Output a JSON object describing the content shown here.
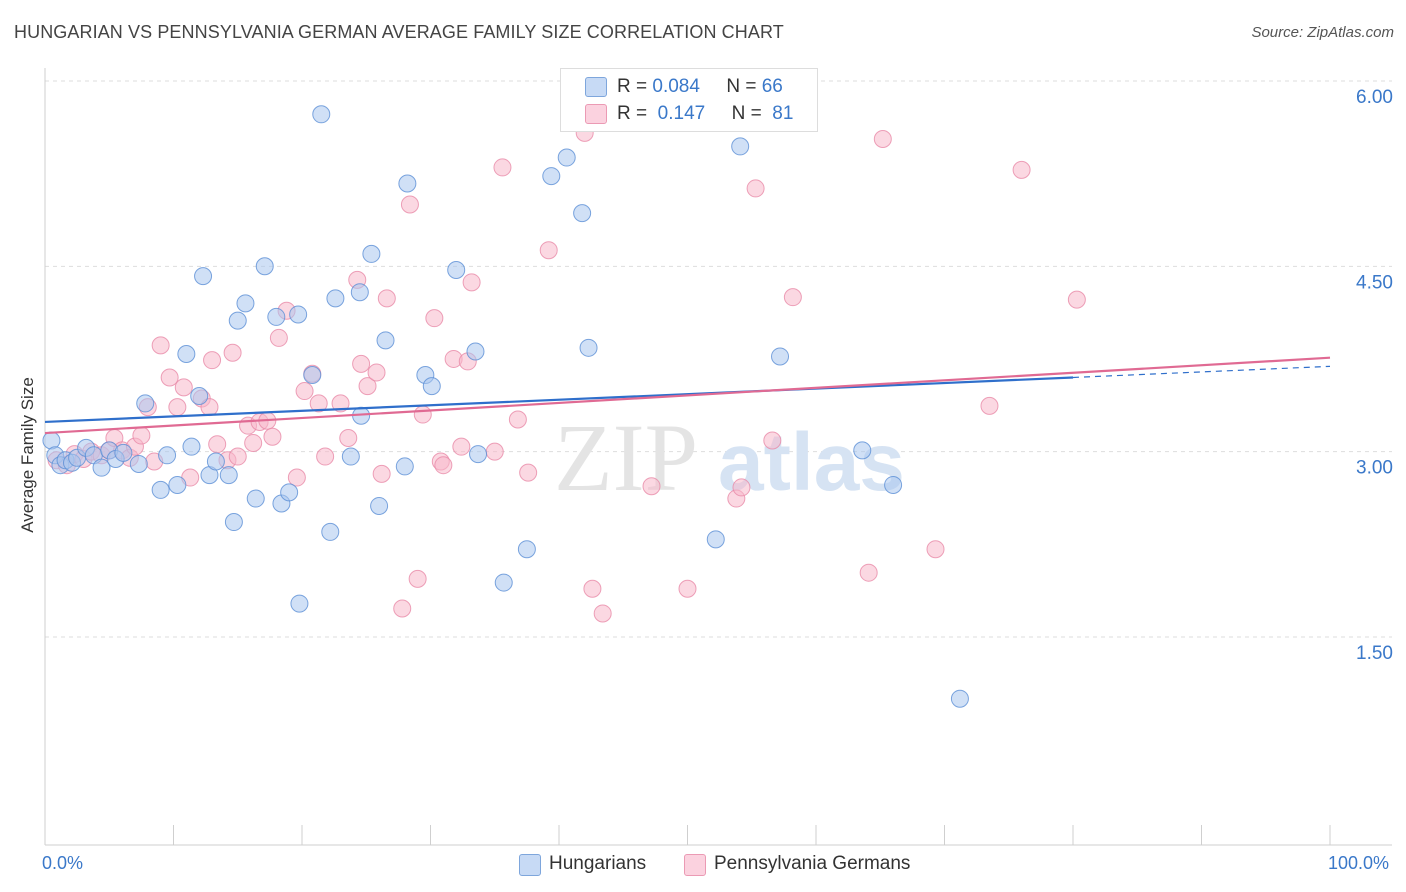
{
  "title": "HUNGARIAN VS PENNSYLVANIA GERMAN AVERAGE FAMILY SIZE CORRELATION CHART",
  "source": "Source: ZipAtlas.com",
  "watermark": {
    "zip": "ZIP",
    "atlas": "atlas"
  },
  "legend": {
    "rows": [
      {
        "r_label": "R =",
        "r_value": "0.084",
        "n_label": "N =",
        "n_value": "66",
        "color": "#a9c6ef"
      },
      {
        "r_label": "R =",
        "r_value": "0.147",
        "n_label": "N =",
        "n_value": "81",
        "color": "#f7b8cb"
      }
    ]
  },
  "bottom_legend": [
    {
      "label": "Hungarians",
      "color": "#a9c6ef"
    },
    {
      "label": "Pennsylvania Germans",
      "color": "#f7b8cb"
    }
  ],
  "chart_data": {
    "type": "scatter",
    "title": "HUNGARIAN VS PENNSYLVANIA GERMAN AVERAGE FAMILY SIZE CORRELATION CHART",
    "xlabel": "",
    "ylabel": "Average Family Size",
    "xlim": [
      0,
      100
    ],
    "ylim": [
      0.2,
      6.3
    ],
    "x_tick_labels": [
      "0.0%",
      "100.0%"
    ],
    "y_ticks": [
      1.5,
      3.0,
      4.5,
      6.0
    ],
    "y_tick_labels": [
      "1.50",
      "3.00",
      "4.50",
      "6.00"
    ],
    "grid": "horizontal dashed",
    "legend_position": "top-center",
    "series": [
      {
        "name": "Hungarians",
        "color": "#5b8fd6",
        "fill": "#a9c6ef",
        "trend": {
          "x": [
            0,
            80
          ],
          "y": [
            3.37,
            3.73
          ]
        },
        "trend_dashed": {
          "x": [
            80,
            100
          ],
          "y": [
            3.73,
            3.82
          ]
        },
        "points": [
          [
            0.5,
            3.22
          ],
          [
            0.8,
            3.1
          ],
          [
            1.2,
            3.02
          ],
          [
            1.6,
            3.06
          ],
          [
            2.1,
            3.04
          ],
          [
            2.5,
            3.08
          ],
          [
            3.2,
            3.16
          ],
          [
            3.8,
            3.1
          ],
          [
            4.4,
            3.0
          ],
          [
            5.0,
            3.14
          ],
          [
            5.5,
            3.07
          ],
          [
            6.1,
            3.12
          ],
          [
            7.3,
            3.03
          ],
          [
            7.8,
            3.52
          ],
          [
            9.0,
            2.82
          ],
          [
            9.5,
            3.1
          ],
          [
            10.3,
            2.86
          ],
          [
            11.0,
            3.92
          ],
          [
            11.4,
            3.17
          ],
          [
            12.0,
            3.58
          ],
          [
            12.3,
            4.55
          ],
          [
            12.8,
            2.94
          ],
          [
            13.3,
            3.05
          ],
          [
            14.3,
            2.94
          ],
          [
            14.7,
            2.56
          ],
          [
            15.0,
            4.19
          ],
          [
            15.6,
            4.33
          ],
          [
            16.4,
            2.75
          ],
          [
            17.1,
            4.63
          ],
          [
            18.0,
            4.22
          ],
          [
            18.4,
            2.71
          ],
          [
            19.0,
            2.8
          ],
          [
            19.7,
            4.24
          ],
          [
            19.8,
            1.9
          ],
          [
            20.8,
            3.75
          ],
          [
            21.5,
            5.86
          ],
          [
            22.2,
            2.48
          ],
          [
            22.6,
            4.37
          ],
          [
            23.8,
            3.09
          ],
          [
            24.6,
            3.42
          ],
          [
            24.5,
            4.42
          ],
          [
            25.4,
            4.73
          ],
          [
            26.0,
            2.69
          ],
          [
            26.5,
            4.03
          ],
          [
            28.0,
            3.01
          ],
          [
            28.2,
            5.3
          ],
          [
            29.6,
            3.75
          ],
          [
            30.1,
            3.66
          ],
          [
            32.0,
            4.6
          ],
          [
            33.5,
            3.94
          ],
          [
            33.7,
            3.11
          ],
          [
            35.7,
            2.07
          ],
          [
            37.5,
            2.34
          ],
          [
            39.4,
            5.36
          ],
          [
            40.6,
            5.51
          ],
          [
            41.8,
            5.06
          ],
          [
            42.3,
            3.97
          ],
          [
            52.2,
            2.42
          ],
          [
            54.1,
            5.6
          ],
          [
            57.2,
            3.9
          ],
          [
            63.6,
            3.14
          ],
          [
            66.0,
            2.86
          ],
          [
            71.2,
            1.13
          ]
        ]
      },
      {
        "name": "Pennsylvania Germans",
        "color": "#e88aa8",
        "fill": "#f7b8cb",
        "trend": {
          "x": [
            0,
            100
          ],
          "y": [
            3.28,
            3.89
          ]
        },
        "points": [
          [
            0.9,
            3.06
          ],
          [
            1.7,
            3.02
          ],
          [
            2.3,
            3.11
          ],
          [
            3.0,
            3.07
          ],
          [
            3.6,
            3.13
          ],
          [
            4.4,
            3.1
          ],
          [
            5.0,
            3.14
          ],
          [
            5.4,
            3.24
          ],
          [
            6.0,
            3.14
          ],
          [
            6.6,
            3.08
          ],
          [
            7.0,
            3.17
          ],
          [
            7.5,
            3.26
          ],
          [
            8.0,
            3.49
          ],
          [
            8.5,
            3.05
          ],
          [
            9.0,
            3.99
          ],
          [
            9.7,
            3.73
          ],
          [
            10.3,
            3.49
          ],
          [
            10.8,
            3.65
          ],
          [
            11.3,
            2.92
          ],
          [
            12.2,
            3.56
          ],
          [
            12.8,
            3.49
          ],
          [
            13.4,
            3.19
          ],
          [
            13.0,
            3.87
          ],
          [
            14.2,
            3.06
          ],
          [
            14.6,
            3.93
          ],
          [
            15.0,
            3.09
          ],
          [
            15.8,
            3.34
          ],
          [
            16.2,
            3.2
          ],
          [
            16.7,
            3.37
          ],
          [
            17.3,
            3.38
          ],
          [
            17.7,
            3.25
          ],
          [
            18.2,
            4.05
          ],
          [
            18.8,
            4.27
          ],
          [
            19.6,
            2.92
          ],
          [
            20.2,
            3.62
          ],
          [
            20.8,
            3.76
          ],
          [
            21.3,
            3.52
          ],
          [
            21.8,
            3.09
          ],
          [
            23.0,
            3.52
          ],
          [
            23.6,
            3.24
          ],
          [
            24.3,
            4.52
          ],
          [
            24.6,
            3.84
          ],
          [
            25.1,
            3.66
          ],
          [
            25.8,
            3.77
          ],
          [
            26.2,
            2.95
          ],
          [
            26.6,
            4.37
          ],
          [
            27.8,
            1.86
          ],
          [
            28.4,
            5.13
          ],
          [
            29.0,
            2.1
          ],
          [
            29.4,
            3.43
          ],
          [
            30.3,
            4.21
          ],
          [
            30.8,
            3.05
          ],
          [
            31.0,
            3.02
          ],
          [
            31.8,
            3.88
          ],
          [
            32.4,
            3.17
          ],
          [
            32.9,
            3.86
          ],
          [
            33.2,
            4.5
          ],
          [
            35.0,
            3.13
          ],
          [
            35.6,
            5.43
          ],
          [
            36.8,
            3.39
          ],
          [
            37.6,
            2.96
          ],
          [
            39.2,
            4.76
          ],
          [
            42.0,
            5.71
          ],
          [
            42.6,
            2.02
          ],
          [
            43.4,
            1.82
          ],
          [
            47.2,
            2.85
          ],
          [
            50.0,
            2.02
          ],
          [
            53.8,
            2.75
          ],
          [
            54.2,
            2.84
          ],
          [
            55.3,
            5.26
          ],
          [
            56.6,
            3.22
          ],
          [
            58.2,
            4.38
          ],
          [
            64.1,
            2.15
          ],
          [
            65.2,
            5.66
          ],
          [
            69.3,
            2.34
          ],
          [
            73.5,
            3.5
          ],
          [
            76.0,
            5.41
          ],
          [
            80.3,
            4.36
          ]
        ]
      }
    ]
  }
}
